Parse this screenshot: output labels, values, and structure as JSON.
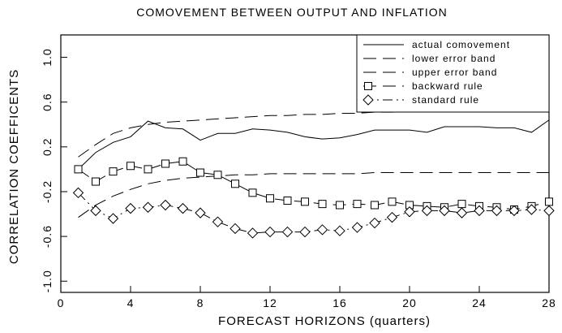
{
  "chart_data": {
    "type": "line",
    "title": "COMOVEMENT BETWEEN OUTPUT AND INFLATION",
    "x_label": "FORECAST HORIZONS (quarters)",
    "y_label": "CORRELATION COEFFICENTS",
    "x": [
      1,
      2,
      3,
      4,
      5,
      6,
      7,
      8,
      9,
      10,
      11,
      12,
      13,
      14,
      15,
      16,
      17,
      18,
      19,
      20,
      21,
      22,
      23,
      24,
      25,
      26,
      27,
      28
    ],
    "xlim": [
      0,
      28
    ],
    "xticks": [
      0,
      4,
      8,
      12,
      16,
      20,
      24,
      28
    ],
    "ylim": [
      -1.1,
      1.2
    ],
    "yticks": [
      {
        "value": -1.0,
        "label": "-1.0"
      },
      -0.6,
      -0.2,
      0.2,
      0.6,
      {
        "value": 1.0,
        "label": "1.0"
      }
    ],
    "legend": "upper right",
    "series": [
      {
        "name": "actual comovement",
        "color": "#000000",
        "dash": "solid",
        "marker": "none",
        "values": [
          0.0,
          0.15,
          0.24,
          0.29,
          0.43,
          0.37,
          0.36,
          0.26,
          0.32,
          0.32,
          0.36,
          0.35,
          0.33,
          0.29,
          0.27,
          0.28,
          0.31,
          0.35,
          0.35,
          0.35,
          0.33,
          0.38,
          0.38,
          0.38,
          0.37,
          0.37,
          0.33,
          0.44
        ]
      },
      {
        "name": "lower error band",
        "color": "#000000",
        "dash": "dashed",
        "marker": "none",
        "values": [
          -0.43,
          -0.32,
          -0.24,
          -0.18,
          -0.13,
          -0.1,
          -0.08,
          -0.07,
          -0.06,
          -0.05,
          -0.05,
          -0.04,
          -0.04,
          -0.04,
          -0.04,
          -0.04,
          -0.04,
          -0.03,
          -0.03,
          -0.03,
          -0.03,
          -0.03,
          -0.03,
          -0.03,
          -0.03,
          -0.03,
          -0.03,
          -0.03
        ]
      },
      {
        "name": "upper error band",
        "color": "#000000",
        "dash": "dashed",
        "marker": "none",
        "values": [
          0.11,
          0.22,
          0.32,
          0.37,
          0.4,
          0.42,
          0.43,
          0.44,
          0.45,
          0.46,
          0.47,
          0.48,
          0.48,
          0.49,
          0.49,
          0.5,
          0.5,
          0.51,
          0.51,
          0.52,
          0.52,
          0.53,
          0.53,
          0.54,
          0.54,
          0.55,
          0.55,
          0.56
        ]
      },
      {
        "name": "backward rule",
        "color": "#000000",
        "dash": "dashed",
        "marker": "square",
        "values": [
          0.0,
          -0.11,
          -0.02,
          0.03,
          0.0,
          0.05,
          0.07,
          -0.03,
          -0.05,
          -0.13,
          -0.21,
          -0.26,
          -0.28,
          -0.29,
          -0.31,
          -0.32,
          -0.31,
          -0.32,
          -0.29,
          -0.32,
          -0.33,
          -0.34,
          -0.31,
          -0.33,
          -0.34,
          -0.36,
          -0.33,
          -0.29
        ]
      },
      {
        "name": "standard rule",
        "color": "#000000",
        "dash": "dashdot",
        "marker": "diamond",
        "values": [
          -0.21,
          -0.37,
          -0.44,
          -0.35,
          -0.34,
          -0.32,
          -0.35,
          -0.39,
          -0.47,
          -0.53,
          -0.57,
          -0.56,
          -0.56,
          -0.56,
          -0.54,
          -0.55,
          -0.52,
          -0.48,
          -0.43,
          -0.38,
          -0.37,
          -0.37,
          -0.39,
          -0.37,
          -0.37,
          -0.37,
          -0.36,
          -0.37
        ]
      }
    ]
  }
}
